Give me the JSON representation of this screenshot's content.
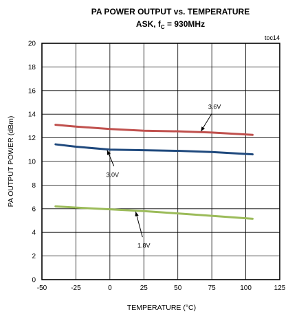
{
  "chart_data": {
    "type": "line",
    "title": "PA POWER OUTPUT vs. TEMPERATURE",
    "subtitle": {
      "prefix": "ASK, f",
      "subscript": "C",
      "suffix": " = 930MHz"
    },
    "figure_id": "toc14",
    "xlabel": "TEMPERATURE (°C)",
    "ylabel": "PA OUTPUT POWER (dBm)",
    "xlim": [
      -50,
      125
    ],
    "ylim": [
      0,
      20
    ],
    "x_ticks": [
      -50,
      -25,
      0,
      25,
      50,
      75,
      100,
      125
    ],
    "y_ticks": [
      0,
      2,
      4,
      6,
      8,
      10,
      12,
      14,
      16,
      18,
      20
    ],
    "grid": true,
    "legend": "none",
    "series": [
      {
        "name": "3.6V",
        "color": "#c0504d",
        "x": [
          -40,
          -25,
          0,
          25,
          50,
          75,
          105
        ],
        "y": [
          13.1,
          12.95,
          12.75,
          12.6,
          12.55,
          12.45,
          12.25
        ]
      },
      {
        "name": "3.0V",
        "color": "#1f497d",
        "x": [
          -40,
          -25,
          0,
          25,
          50,
          75,
          105
        ],
        "y": [
          11.45,
          11.25,
          11.0,
          10.95,
          10.9,
          10.8,
          10.6
        ]
      },
      {
        "name": "1.8V",
        "color": "#9bbb59",
        "x": [
          -40,
          -25,
          0,
          25,
          50,
          75,
          105
        ],
        "y": [
          6.2,
          6.1,
          5.95,
          5.8,
          5.6,
          5.4,
          5.15
        ]
      }
    ],
    "annotations": [
      {
        "series": "3.6V",
        "label": "3.6V",
        "at": [
          77,
          14.45
        ],
        "arrow_from": [
          75,
          14.05
        ],
        "arrow_to": [
          67,
          12.55
        ],
        "anchor": "middle"
      },
      {
        "series": "3.0V",
        "label": "3.0V",
        "at": [
          2,
          8.7
        ],
        "arrow_from": [
          3,
          9.6
        ],
        "arrow_to": [
          -2,
          10.95
        ],
        "anchor": "middle"
      },
      {
        "series": "1.8V",
        "label": "1.8V",
        "at": [
          25,
          2.7
        ],
        "arrow_from": [
          24,
          3.6
        ],
        "arrow_to": [
          19,
          5.75
        ],
        "anchor": "middle"
      }
    ]
  }
}
